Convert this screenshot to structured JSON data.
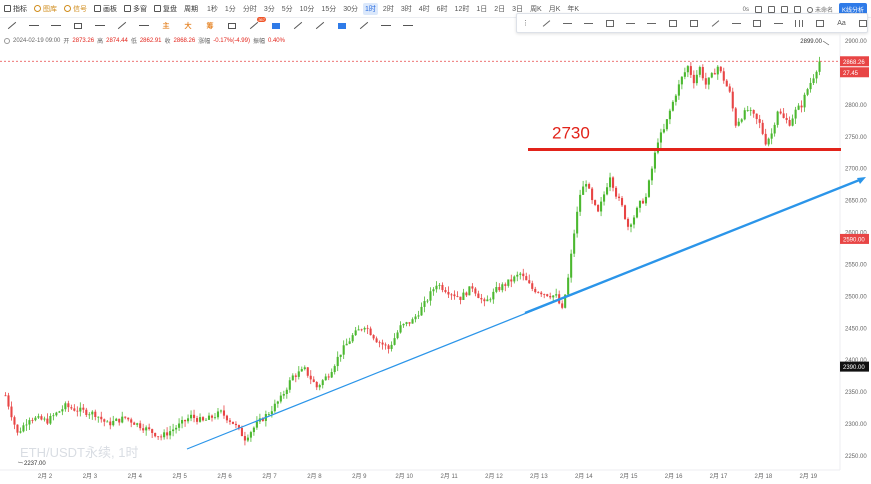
{
  "toolbar": {
    "items": [
      "指标",
      "图库",
      "信号",
      "画板",
      "多窗",
      "复盘",
      "周期"
    ],
    "timeframes": [
      "1秒",
      "1分",
      "分时",
      "3分",
      "5分",
      "10分",
      "15分",
      "30分",
      "1时",
      "2时",
      "3时",
      "4时",
      "6时",
      "12时",
      "1日",
      "2日",
      "3日",
      "周K",
      "月K",
      "年K"
    ],
    "active_timeframe": "1时"
  },
  "top_right": {
    "seconds": "0s",
    "user_label": "未命名",
    "kline_button": "K线分析"
  },
  "drawing_tools": {
    "text_tools": [
      "主",
      "大",
      "筹"
    ],
    "badge": "367"
  },
  "info_bar": {
    "datetime": "2024-02-19 09:00",
    "open_label": "开",
    "open": "2873.26",
    "high_label": "高",
    "high": "2874.44",
    "low_label": "低",
    "low": "2862.91",
    "close_label": "收",
    "close": "2868.26",
    "change_label": "涨幅",
    "change": "-0.17%(-4.99)",
    "amp_label": "振幅",
    "amp": "0.40%"
  },
  "chart_data": {
    "type": "candlestick",
    "symbol_watermark": "ETH/USDT永续, 1时",
    "x_tick_labels": [
      "2月 2",
      "2月 3",
      "2月 4",
      "2月 5",
      "2月 6",
      "2月 7",
      "2月 8",
      "2月 9",
      "2月 10",
      "2月 11",
      "2月 12",
      "2月 13",
      "2月 14",
      "2月 15",
      "2月 16",
      "2月 17",
      "2月 18",
      "2月 19"
    ],
    "y_tick_labels": [
      "2900.00",
      "2850.00",
      "2800.00",
      "2750.00",
      "2700.00",
      "2650.00",
      "2600.00",
      "2550.00",
      "2500.00",
      "2450.00",
      "2400.00",
      "2350.00",
      "2300.00",
      "2250.00"
    ],
    "ylim": [
      2226,
      2910
    ],
    "price_tags": {
      "last": "2868.26",
      "countdown": "27.45",
      "red_level": "2590.00",
      "black_level": "2390.00"
    },
    "extremes": {
      "high": "2899.00",
      "low": "2237.00"
    },
    "horizontal_line": {
      "price": 2730,
      "label": "2730",
      "color": "#e2231a"
    },
    "trend_line": {
      "from": [
        "2月 5",
        2258
      ],
      "to": [
        "2月 19",
        2688
      ],
      "color": "#2b95e9"
    },
    "up_color": "#4cb830",
    "down_color": "#e84545",
    "series_path": [
      [
        0,
        2345
      ],
      [
        4,
        2285
      ],
      [
        8,
        2310
      ],
      [
        14,
        2305
      ],
      [
        20,
        2328
      ],
      [
        24,
        2322
      ],
      [
        30,
        2316
      ],
      [
        34,
        2300
      ],
      [
        40,
        2310
      ],
      [
        46,
        2295
      ],
      [
        52,
        2280
      ],
      [
        58,
        2298
      ],
      [
        62,
        2312
      ],
      [
        66,
        2304
      ],
      [
        72,
        2318
      ],
      [
        76,
        2302
      ],
      [
        80,
        2278
      ],
      [
        84,
        2300
      ],
      [
        88,
        2318
      ],
      [
        92,
        2340
      ],
      [
        96,
        2375
      ],
      [
        100,
        2385
      ],
      [
        104,
        2358
      ],
      [
        108,
        2378
      ],
      [
        112,
        2412
      ],
      [
        116,
        2438
      ],
      [
        120,
        2455
      ],
      [
        124,
        2432
      ],
      [
        128,
        2418
      ],
      [
        132,
        2452
      ],
      [
        136,
        2462
      ],
      [
        140,
        2488
      ],
      [
        144,
        2520
      ],
      [
        148,
        2508
      ],
      [
        152,
        2498
      ],
      [
        156,
        2515
      ],
      [
        160,
        2488
      ],
      [
        164,
        2510
      ],
      [
        168,
        2522
      ],
      [
        172,
        2535
      ],
      [
        176,
        2512
      ],
      [
        180,
        2505
      ],
      [
        184,
        2500
      ],
      [
        186,
        2478
      ],
      [
        188,
        2528
      ],
      [
        190,
        2600
      ],
      [
        192,
        2660
      ],
      [
        194,
        2680
      ],
      [
        196,
        2648
      ],
      [
        198,
        2630
      ],
      [
        200,
        2660
      ],
      [
        202,
        2690
      ],
      [
        204,
        2660
      ],
      [
        206,
        2640
      ],
      [
        208,
        2610
      ],
      [
        210,
        2625
      ],
      [
        212,
        2645
      ],
      [
        214,
        2655
      ],
      [
        216,
        2700
      ],
      [
        218,
        2745
      ],
      [
        220,
        2760
      ],
      [
        222,
        2790
      ],
      [
        224,
        2818
      ],
      [
        226,
        2842
      ],
      [
        228,
        2860
      ],
      [
        230,
        2838
      ],
      [
        232,
        2858
      ],
      [
        234,
        2832
      ],
      [
        236,
        2845
      ],
      [
        238,
        2860
      ],
      [
        240,
        2840
      ],
      [
        242,
        2818
      ],
      [
        244,
        2770
      ],
      [
        246,
        2782
      ],
      [
        248,
        2792
      ],
      [
        250,
        2782
      ],
      [
        252,
        2770
      ],
      [
        254,
        2742
      ],
      [
        256,
        2755
      ],
      [
        258,
        2792
      ],
      [
        260,
        2778
      ],
      [
        262,
        2772
      ],
      [
        264,
        2790
      ],
      [
        266,
        2800
      ],
      [
        268,
        2825
      ],
      [
        270,
        2845
      ],
      [
        272,
        2868
      ]
    ]
  }
}
